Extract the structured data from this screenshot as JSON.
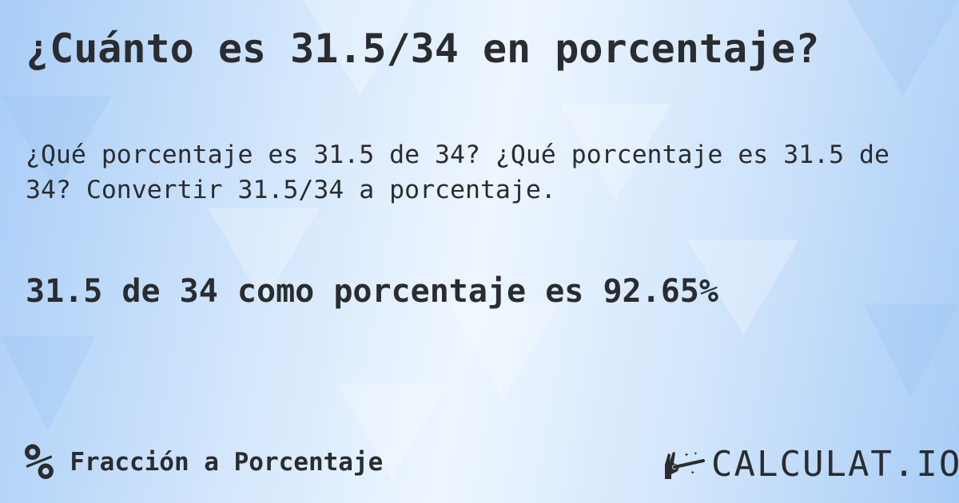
{
  "header": {
    "title": "¿Cuánto es 31.5/34 en porcentaje?"
  },
  "main": {
    "description": "¿Qué porcentaje es 31.5 de 34? ¿Qué porcentaje es 31.5 de 34? Convertir 31.5/34 a porcentaje.",
    "result": "31.5 de 34 como porcentaje es 92.65%"
  },
  "footer": {
    "category_icon": "percent-icon",
    "category_icon_glyph": "%",
    "category_label": "Fracción a Porcentaje",
    "logo_text": "CALCULAT.IO",
    "logo_icon": "magic-hand-wand-icon"
  }
}
